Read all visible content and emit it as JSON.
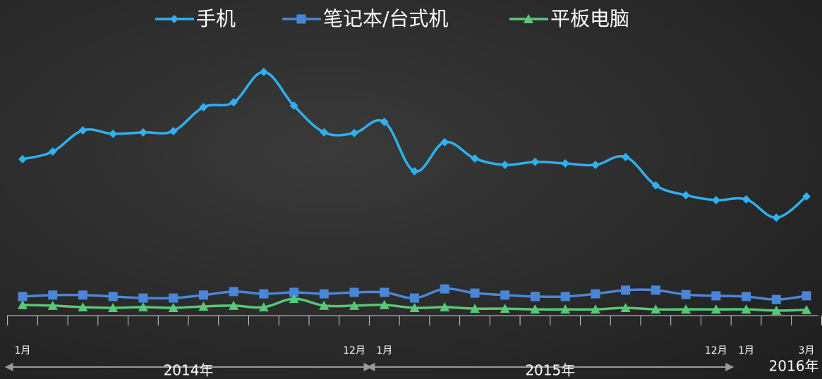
{
  "chart_data": {
    "type": "line",
    "categories": [
      "1月",
      null,
      null,
      null,
      null,
      null,
      null,
      null,
      null,
      null,
      null,
      "12月",
      "1月",
      null,
      null,
      null,
      null,
      null,
      null,
      null,
      null,
      null,
      null,
      "12月",
      "1月",
      null,
      "3月"
    ],
    "x_groups": [
      "2014年",
      "2015年",
      "2016年"
    ],
    "ylim": [
      0,
      100
    ],
    "series": [
      {
        "name": "手机",
        "color": "#2fb0f0",
        "marker": "diamond",
        "values": [
          64,
          67.1,
          75.7,
          74.3,
          74.9,
          75.4,
          85.1,
          87.1,
          99.4,
          85.7,
          74.9,
          74.6,
          79.1,
          59.1,
          70.9,
          64.3,
          61.7,
          62.9,
          62.3,
          61.7,
          64.9,
          53.4,
          49.4,
          47.4,
          47.7,
          40.3,
          48.9
        ]
      },
      {
        "name": "笔记本/台式机",
        "color": "#4a86d8",
        "marker": "square",
        "values": [
          8.3,
          8.9,
          8.9,
          8.3,
          7.7,
          7.7,
          8.9,
          10.3,
          9.4,
          10,
          9.4,
          10,
          10,
          7.7,
          11.4,
          9.7,
          8.9,
          8.3,
          8.3,
          9.4,
          10.9,
          10.9,
          9.1,
          8.6,
          8.3,
          7.1,
          8.6
        ]
      },
      {
        "name": "平板电脑",
        "color": "#58c878",
        "marker": "triangle",
        "values": [
          4.9,
          4.6,
          4,
          3.7,
          4,
          3.7,
          4.3,
          4.6,
          4,
          7.4,
          4.6,
          4.6,
          4.9,
          3.7,
          4,
          3.4,
          3.4,
          3.1,
          3.1,
          3.1,
          3.7,
          3.1,
          3.1,
          3.1,
          3.1,
          2.6,
          2.9
        ]
      }
    ]
  }
}
